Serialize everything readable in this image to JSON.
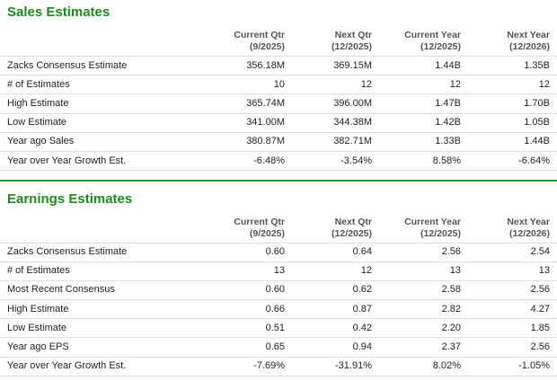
{
  "sales": {
    "title": "Sales Estimates",
    "columns": [
      {
        "name": "Current Qtr",
        "period": "(9/2025)"
      },
      {
        "name": "Next Qtr",
        "period": "(12/2025)"
      },
      {
        "name": "Current Year",
        "period": "(12/2025)"
      },
      {
        "name": "Next Year",
        "period": "(12/2026)"
      }
    ],
    "rows": [
      {
        "label": "Zacks Consensus Estimate",
        "values": [
          "356.18M",
          "369.15M",
          "1.44B",
          "1.35B"
        ]
      },
      {
        "label": "# of Estimates",
        "values": [
          "10",
          "12",
          "12",
          "12"
        ]
      },
      {
        "label": "High Estimate",
        "values": [
          "365.74M",
          "396.00M",
          "1.47B",
          "1.70B"
        ]
      },
      {
        "label": "Low Estimate",
        "values": [
          "341.00M",
          "344.38M",
          "1.42B",
          "1.05B"
        ]
      },
      {
        "label": "Year ago Sales",
        "values": [
          "380.87M",
          "382.71M",
          "1.33B",
          "1.44B"
        ]
      },
      {
        "label": "Year over Year Growth Est.",
        "values": [
          "-6.48%",
          "-3.54%",
          "8.58%",
          "-6.64%"
        ]
      }
    ]
  },
  "earnings": {
    "title": "Earnings Estimates",
    "columns": [
      {
        "name": "Current Qtr",
        "period": "(9/2025)"
      },
      {
        "name": "Next Qtr",
        "period": "(12/2025)"
      },
      {
        "name": "Current Year",
        "period": "(12/2025)"
      },
      {
        "name": "Next Year",
        "period": "(12/2026)"
      }
    ],
    "rows": [
      {
        "label": "Zacks Consensus Estimate",
        "values": [
          "0.60",
          "0.64",
          "2.56",
          "2.54"
        ]
      },
      {
        "label": "# of Estimates",
        "values": [
          "13",
          "12",
          "13",
          "13"
        ]
      },
      {
        "label": "Most Recent Consensus",
        "values": [
          "0.60",
          "0.62",
          "2.58",
          "2.56"
        ]
      },
      {
        "label": "High Estimate",
        "values": [
          "0.66",
          "0.87",
          "2.82",
          "4.27"
        ]
      },
      {
        "label": "Low Estimate",
        "values": [
          "0.51",
          "0.42",
          "2.20",
          "1.85"
        ]
      },
      {
        "label": "Year ago EPS",
        "values": [
          "0.65",
          "0.94",
          "2.37",
          "2.56"
        ]
      },
      {
        "label": "Year over Year Growth Est.",
        "values": [
          "-7.69%",
          "-31.91%",
          "8.02%",
          "-1.05%"
        ]
      }
    ]
  }
}
